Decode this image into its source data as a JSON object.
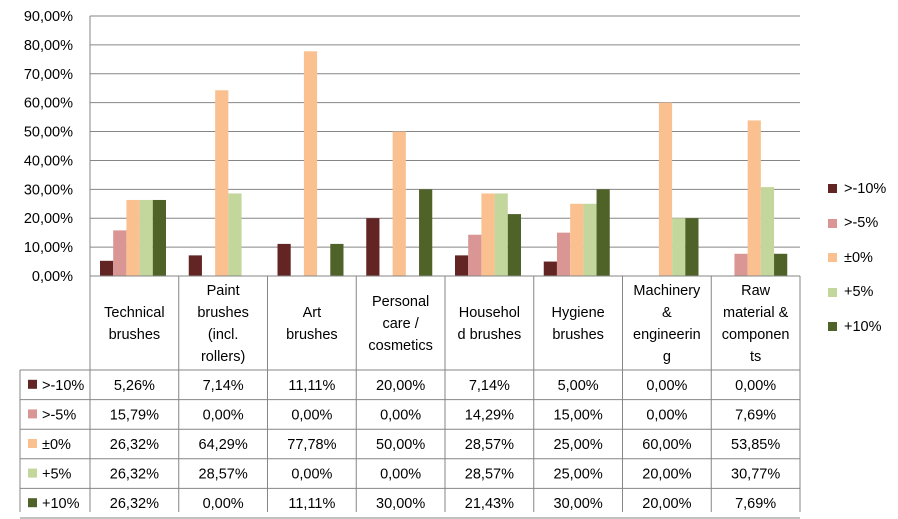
{
  "chart_data": {
    "type": "bar",
    "title": "",
    "xlabel": "",
    "ylabel": "",
    "ylim": [
      0,
      90
    ],
    "y_ticks": [
      "0,00%",
      "10,00%",
      "20,00%",
      "30,00%",
      "40,00%",
      "50,00%",
      "60,00%",
      "70,00%",
      "80,00%",
      "90,00%"
    ],
    "grid": true,
    "legend_position": "right",
    "categories": [
      [
        "Technical",
        "brushes"
      ],
      [
        "Paint",
        "brushes",
        "(incl.",
        "rollers)"
      ],
      [
        "Art",
        "brushes"
      ],
      [
        "Personal",
        "care /",
        "cosmetics"
      ],
      [
        "Househol",
        "d brushes"
      ],
      [
        "Hygiene",
        "brushes"
      ],
      [
        "Machinery",
        "&",
        "engineerin",
        "g"
      ],
      [
        "Raw",
        "material &",
        "componen",
        "ts"
      ]
    ],
    "series": [
      {
        "name": ">-10%",
        "color": "#632523",
        "values": [
          5.26,
          7.14,
          11.11,
          20.0,
          7.14,
          5.0,
          0.0,
          0.0
        ],
        "labels": [
          "5,26%",
          "7,14%",
          "11,11%",
          "20,00%",
          "7,14%",
          "5,00%",
          "0,00%",
          "0,00%"
        ]
      },
      {
        "name": ">-5%",
        "color": "#d99694",
        "values": [
          15.79,
          0.0,
          0.0,
          0.0,
          14.29,
          15.0,
          0.0,
          7.69
        ],
        "labels": [
          "15,79%",
          "0,00%",
          "0,00%",
          "0,00%",
          "14,29%",
          "15,00%",
          "0,00%",
          "7,69%"
        ]
      },
      {
        "name": "±0%",
        "color": "#fac090",
        "values": [
          26.32,
          64.29,
          77.78,
          50.0,
          28.57,
          25.0,
          60.0,
          53.85
        ],
        "labels": [
          "26,32%",
          "64,29%",
          "77,78%",
          "50,00%",
          "28,57%",
          "25,00%",
          "60,00%",
          "53,85%"
        ]
      },
      {
        "name": "+5%",
        "color": "#c3d69b",
        "values": [
          26.32,
          28.57,
          0.0,
          0.0,
          28.57,
          25.0,
          20.0,
          30.77
        ],
        "labels": [
          "26,32%",
          "28,57%",
          "0,00%",
          "0,00%",
          "28,57%",
          "25,00%",
          "20,00%",
          "30,77%"
        ]
      },
      {
        "name": "+10%",
        "color": "#4f6228",
        "values": [
          26.32,
          0.0,
          11.11,
          30.0,
          21.43,
          30.0,
          20.0,
          7.69
        ],
        "labels": [
          "26,32%",
          "0,00%",
          "11,11%",
          "30,00%",
          "21,43%",
          "30,00%",
          "20,00%",
          "7,69%"
        ]
      }
    ]
  }
}
